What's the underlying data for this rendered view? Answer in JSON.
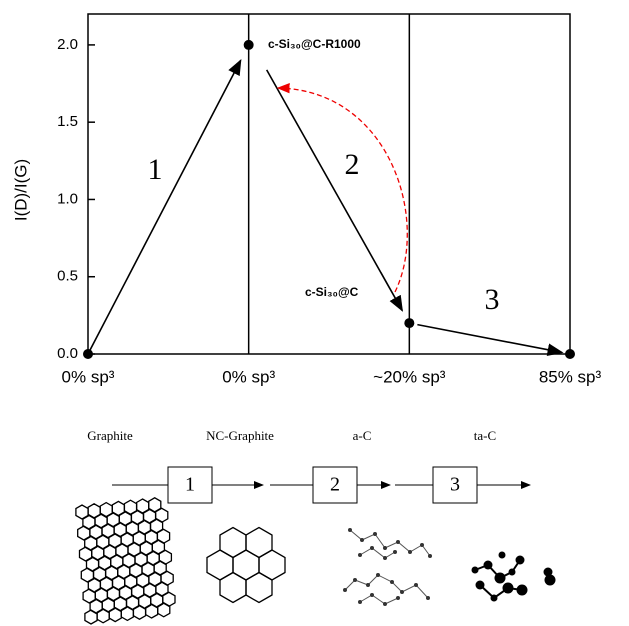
{
  "chart_data": {
    "type": "line",
    "y_label": "I(D)/I(G)",
    "categories": [
      "0% sp³",
      "0% sp³",
      "~20% sp³",
      "85% sp³"
    ],
    "values": [
      0,
      2.0,
      0.2,
      0
    ],
    "color": "#000000",
    "ylim": [
      0,
      2.2
    ],
    "yticks": [
      {
        "value": 0,
        "label": "0.0"
      },
      0.5,
      {
        "value": 1,
        "label": "1.0"
      },
      1.5,
      {
        "value": 2,
        "label": "2.0"
      }
    ],
    "stage_labels": [
      "1",
      "2",
      "3"
    ],
    "annotations": [
      "c-Si₃₀@C-R1000",
      "c-Si₃₀@C"
    ]
  },
  "diagram": {
    "phases": [
      "Graphite",
      "NC-Graphite",
      "a-C",
      "ta-C"
    ],
    "steps": [
      "1",
      "2",
      "3"
    ]
  }
}
